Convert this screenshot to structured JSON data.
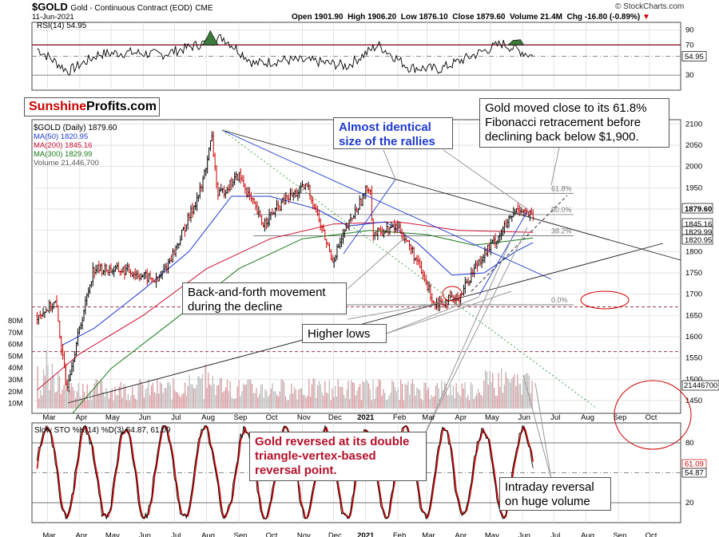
{
  "header": {
    "symbol": "$GOLD",
    "name": "Gold - Continuous Contract (EOD)",
    "exchange": "CME",
    "date": "11-Jun-2021",
    "open_label": "Open",
    "open": "1901.90",
    "high_label": "High",
    "high": "1906.20",
    "low_label": "Low",
    "low": "1876.10",
    "close_label": "Close",
    "close": "1879.60",
    "volume_label": "Volume",
    "volume": "21.4M",
    "chg_label": "Chg",
    "chg": "-16.80 (-0.89%)",
    "chg_arrow": "▼",
    "copyright": "© StockCharts.com"
  },
  "logo": {
    "part1": "Sunshine",
    "part2": "Profits.com"
  },
  "colors": {
    "price_up": "#000000",
    "price_down": "#cc0000",
    "ma50": "#1f3bd1",
    "ma200": "#cc1133",
    "ma300": "#1a7a1a",
    "fib": "#888888",
    "grid": "#d8d8d8",
    "volume": "#b8b8b8",
    "sto_k": "#000000",
    "sto_d": "#cc0000"
  },
  "annotations": {
    "fib_note": "Gold moved close to its 61.8% Fibonacci retracement before declining back below $1,900.",
    "rallies": "Almost identical size of the rallies",
    "back_forth": "Back-and-forth movement during the decline",
    "higher_lows": "Higher lows",
    "reversal": "Gold reversed at its double triangle-vertex-based reversal point.",
    "intraday": "Intraday reversal on huge volume"
  },
  "chart_data": [
    {
      "type": "line",
      "title": "RSI(14) 54.95",
      "current": "54.95",
      "ytick_labels": [
        "90",
        "70",
        "30"
      ],
      "ylim": [
        10,
        100
      ],
      "levels": [
        70,
        30
      ],
      "x": [
        "2020-02",
        "2020-03",
        "2020-04",
        "2020-05",
        "2020-06",
        "2020-07",
        "2020-08",
        "2020-09",
        "2020-10",
        "2020-11",
        "2020-12",
        "2021-01",
        "2021-02",
        "2021-03",
        "2021-04",
        "2021-05",
        "2021-06"
      ],
      "values": [
        65,
        35,
        58,
        60,
        57,
        68,
        80,
        45,
        50,
        48,
        42,
        70,
        40,
        38,
        55,
        72,
        55
      ]
    },
    {
      "type": "line",
      "title": "$GOLD (Daily) 1879.60",
      "legend": [
        {
          "name": "MA(50) 1820.95",
          "color": "#1f3bd1"
        },
        {
          "name": "MA(200) 1845.16",
          "color": "#cc1133"
        },
        {
          "name": "MA(300) 1829.99",
          "color": "#1a7a1a"
        },
        {
          "name": "Volume 21,446,700",
          "color": "#888888"
        }
      ],
      "ylim": [
        1420,
        2110
      ],
      "ytick_labels": [
        "2100",
        "2050",
        "2000",
        "1950",
        "1900",
        "1850",
        "1800",
        "1750",
        "1700",
        "1650",
        "1600",
        "1550",
        "1500",
        "1450"
      ],
      "vol_tick_labels": [
        "80M",
        "70M",
        "60M",
        "50M",
        "40M",
        "30M",
        "20M",
        "10M"
      ],
      "price_tags": [
        "1879.60",
        "1845.16",
        "1829.99",
        "1820.95"
      ],
      "volume_tag": "21446700",
      "fib_levels": [
        {
          "label": "61.8%",
          "value": 1937
        },
        {
          "label": "50.0%",
          "value": 1887
        },
        {
          "label": "38.2%",
          "value": 1837
        },
        {
          "label": "0.0%",
          "value": 1675
        }
      ],
      "x_labels": [
        "Mar",
        "Apr",
        "May",
        "Jun",
        "Jul",
        "Aug",
        "Sep",
        "Oct",
        "Nov",
        "Dec",
        "2021",
        "Feb",
        "Mar",
        "Apr",
        "May",
        "Jun",
        "Jul",
        "Aug",
        "Sep",
        "Oct"
      ],
      "series": [
        {
          "name": "Close",
          "x": [
            "2020-02-20",
            "2020-03-09",
            "2020-03-19",
            "2020-04-14",
            "2020-05-18",
            "2020-06-15",
            "2020-07-01",
            "2020-07-27",
            "2020-08-06",
            "2020-08-12",
            "2020-09-01",
            "2020-09-24",
            "2020-10-15",
            "2020-11-06",
            "2020-11-30",
            "2020-12-15",
            "2021-01-05",
            "2021-01-08",
            "2021-02-01",
            "2021-02-15",
            "2021-03-08",
            "2021-03-31",
            "2021-04-20",
            "2021-05-10",
            "2021-05-28",
            "2021-06-11"
          ],
          "values": [
            1650,
            1680,
            1480,
            1760,
            1755,
            1730,
            1800,
            1950,
            2069,
            1930,
            1980,
            1865,
            1920,
            1955,
            1780,
            1860,
            1960,
            1840,
            1860,
            1800,
            1680,
            1690,
            1780,
            1840,
            1905,
            1879.6
          ]
        }
      ]
    },
    {
      "type": "line",
      "title": "Slow STO %K(14) %D(3) 54.87, 61.09",
      "k_label": "54.87",
      "d_label": "61.09",
      "ytick_labels": [
        "80",
        "20"
      ],
      "ylim": [
        0,
        100
      ],
      "levels": [
        80,
        50,
        20
      ],
      "x_labels": [
        "Mar",
        "Apr",
        "May",
        "Jun",
        "Jul",
        "Aug",
        "Sep",
        "Oct",
        "Nov",
        "Dec",
        "2021",
        "Feb",
        "Mar",
        "Apr",
        "May",
        "Jun",
        "Jul",
        "Aug",
        "Sep",
        "Oct"
      ]
    }
  ]
}
